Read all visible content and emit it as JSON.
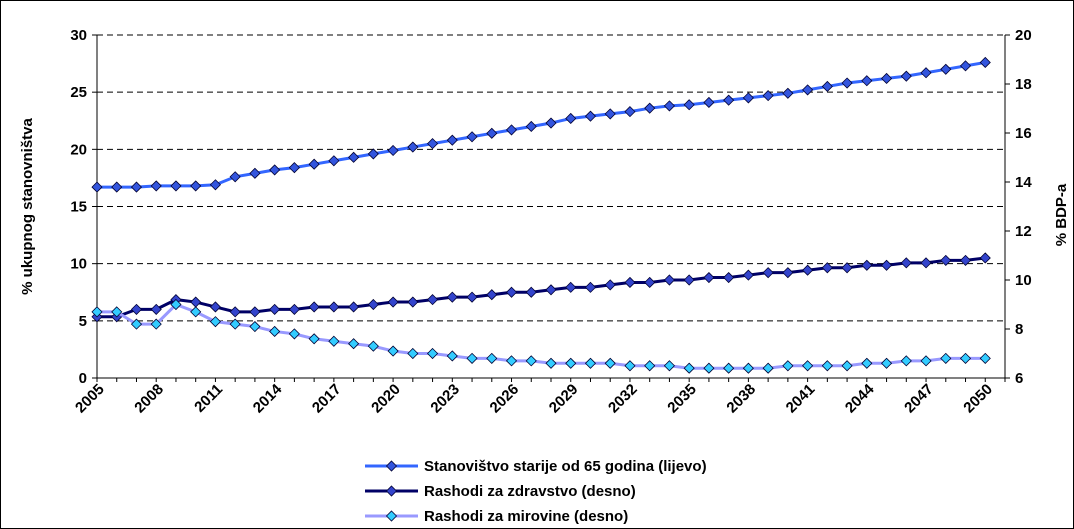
{
  "chart_data": {
    "type": "line",
    "title": "",
    "ylabel": "% ukupnog stanovništva",
    "y2label": "% BDP-a",
    "ylim": [
      0,
      30
    ],
    "y2lim": [
      6,
      20
    ],
    "yticks": [
      0,
      5,
      10,
      15,
      20,
      25,
      30
    ],
    "y2ticks": [
      6,
      8,
      10,
      12,
      14,
      16,
      18,
      20
    ],
    "grid": "horizontal dashed",
    "legend_position": "bottom",
    "xtick_labels": [
      "2005",
      "2008",
      "2011",
      "2014",
      "2017",
      "2020",
      "2023",
      "2026",
      "2029",
      "2032",
      "2035",
      "2038",
      "2041",
      "2044",
      "2047",
      "2050"
    ],
    "x": [
      2005,
      2006,
      2007,
      2008,
      2009,
      2010,
      2011,
      2012,
      2013,
      2014,
      2015,
      2016,
      2017,
      2018,
      2019,
      2020,
      2021,
      2022,
      2023,
      2024,
      2025,
      2026,
      2027,
      2028,
      2029,
      2030,
      2031,
      2032,
      2033,
      2034,
      2035,
      2036,
      2037,
      2038,
      2039,
      2040,
      2041,
      2042,
      2043,
      2044,
      2045,
      2046,
      2047,
      2048,
      2049,
      2050
    ],
    "series": [
      {
        "name": "Stanovištvo starije od 65 godina (lijevo)",
        "axis": "left",
        "color": "#3366ff",
        "marker_color": "#3355dd",
        "values": [
          16.7,
          16.7,
          16.7,
          16.8,
          16.8,
          16.8,
          16.9,
          17.6,
          17.9,
          18.2,
          18.4,
          18.7,
          19.0,
          19.3,
          19.6,
          19.9,
          20.2,
          20.5,
          20.8,
          21.1,
          21.4,
          21.7,
          22.0,
          22.3,
          22.7,
          22.9,
          23.1,
          23.3,
          23.6,
          23.8,
          23.9,
          24.1,
          24.3,
          24.5,
          24.7,
          24.9,
          25.2,
          25.5,
          25.8,
          26.0,
          26.2,
          26.4,
          26.7,
          27.0,
          27.3,
          27.6
        ]
      },
      {
        "name": "Rashodi za zdravstvo (desno)",
        "axis": "right",
        "color": "#000066",
        "marker_color": "#3344cc",
        "values": [
          8.5,
          8.5,
          8.8,
          8.8,
          9.2,
          9.1,
          8.9,
          8.7,
          8.7,
          8.8,
          8.8,
          8.9,
          8.9,
          8.9,
          9.0,
          9.1,
          9.1,
          9.2,
          9.3,
          9.3,
          9.4,
          9.5,
          9.5,
          9.6,
          9.7,
          9.7,
          9.8,
          9.9,
          9.9,
          10.0,
          10.0,
          10.1,
          10.1,
          10.2,
          10.3,
          10.3,
          10.4,
          10.5,
          10.5,
          10.6,
          10.6,
          10.7,
          10.7,
          10.8,
          10.8,
          10.9
        ]
      },
      {
        "name": "Rashodi za mirovine (desno)",
        "axis": "right",
        "color": "#9999ff",
        "marker_color": "#33ccff",
        "values": [
          8.7,
          8.7,
          8.2,
          8.2,
          9.0,
          8.7,
          8.3,
          8.2,
          8.1,
          7.9,
          7.8,
          7.6,
          7.5,
          7.4,
          7.3,
          7.1,
          7.0,
          7.0,
          6.9,
          6.8,
          6.8,
          6.7,
          6.7,
          6.6,
          6.6,
          6.6,
          6.6,
          6.5,
          6.5,
          6.5,
          6.4,
          6.4,
          6.4,
          6.4,
          6.4,
          6.5,
          6.5,
          6.5,
          6.5,
          6.6,
          6.6,
          6.7,
          6.7,
          6.8,
          6.8,
          6.8
        ]
      }
    ]
  }
}
